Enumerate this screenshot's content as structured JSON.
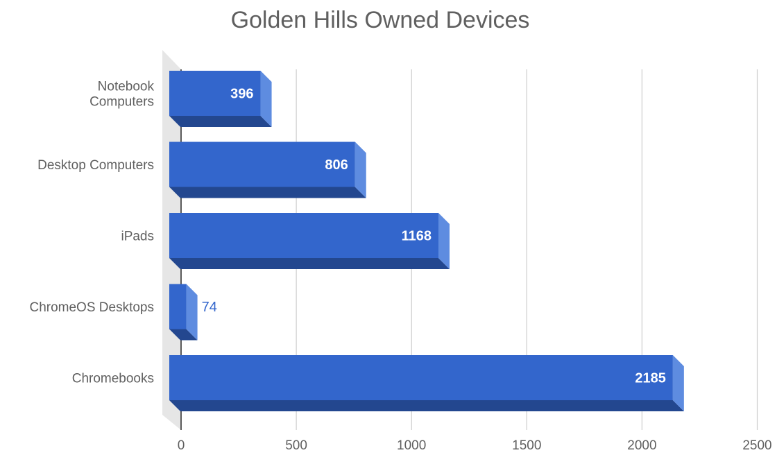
{
  "chart_data": {
    "type": "bar",
    "orientation": "horizontal",
    "style": "3d",
    "title": "Golden Hills Owned Devices",
    "xlabel": "",
    "ylabel": "",
    "categories": [
      "Notebook\nComputers",
      "Desktop Computers",
      "iPads",
      "ChromeOS Desktops",
      "Chromebooks"
    ],
    "values": [
      396,
      806,
      1168,
      74,
      2185
    ],
    "value_labels": [
      "396",
      "806",
      "1168",
      "74",
      "2185"
    ],
    "xlim": [
      0,
      2500
    ],
    "x_ticks": [
      0,
      500,
      1000,
      1500,
      2000,
      2500
    ],
    "x_tick_labels": [
      "0",
      "500",
      "1000",
      "1500",
      "2000",
      "2500"
    ],
    "grid": true,
    "legend": "none",
    "colors": {
      "bar_front": "#3366cc",
      "bar_side": "#5e8ce0",
      "bar_bottom": "#23478f",
      "grid": "#cccccc",
      "floor": "#e6e6e6",
      "axis": "#333333",
      "text": "#5f5f5f",
      "label_inside": "#ffffff",
      "label_outside": "#3366cc"
    }
  }
}
